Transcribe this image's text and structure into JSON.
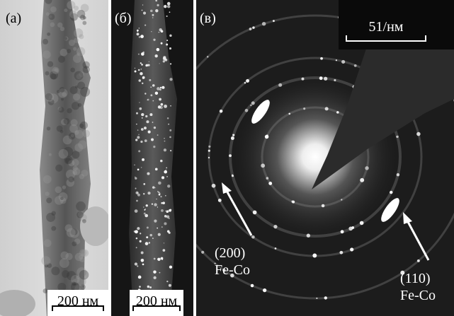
{
  "panels": [
    {
      "label": "(а)",
      "scale_bar": "200 нм"
    },
    {
      "label": "(б)",
      "scale_bar": "200 нм"
    },
    {
      "label": "(в)",
      "scale_bar": "51/нм",
      "annotations": [
        {
          "index": "(200)",
          "phase": "Fe-Co"
        },
        {
          "index": "(110)",
          "phase": "Fe-Co"
        }
      ]
    }
  ]
}
